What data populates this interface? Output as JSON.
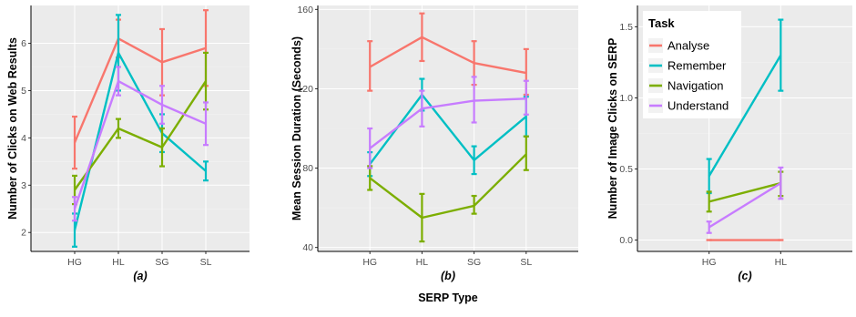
{
  "chart_data": [
    {
      "type": "line",
      "panel_label": "(a)",
      "ylabel": "Number of Clicks on Web Results",
      "xlabel": "",
      "categories": [
        "HG",
        "HL",
        "SG",
        "SL"
      ],
      "ylim": [
        1.6,
        6.8
      ],
      "yticks": [
        2,
        3,
        4,
        5,
        6
      ],
      "series": [
        {
          "name": "Analyse",
          "values": [
            3.9,
            6.1,
            5.6,
            5.9
          ],
          "lower": [
            3.35,
            5.7,
            4.9,
            5.1
          ],
          "upper": [
            4.45,
            6.5,
            6.3,
            6.7
          ]
        },
        {
          "name": "Remember",
          "values": [
            2.05,
            5.8,
            4.1,
            3.3
          ],
          "lower": [
            1.7,
            5.0,
            3.7,
            3.1
          ],
          "upper": [
            2.4,
            6.6,
            4.5,
            3.5
          ]
        },
        {
          "name": "Navigation",
          "values": [
            2.9,
            4.2,
            3.8,
            5.2
          ],
          "lower": [
            2.6,
            4.0,
            3.4,
            4.6
          ],
          "upper": [
            3.2,
            4.4,
            4.2,
            5.8
          ]
        },
        {
          "name": "Understand",
          "values": [
            2.5,
            5.2,
            4.7,
            4.3
          ],
          "lower": [
            2.25,
            4.9,
            4.3,
            3.85
          ],
          "upper": [
            2.75,
            5.5,
            5.1,
            4.75
          ]
        }
      ]
    },
    {
      "type": "line",
      "panel_label": "(b)",
      "ylabel": "Mean Session Duration (Seconds)",
      "xlabel": "SERP Type",
      "categories": [
        "HG",
        "HL",
        "SG",
        "SL"
      ],
      "ylim": [
        38,
        162
      ],
      "yticks": [
        40,
        80,
        120,
        160
      ],
      "series": [
        {
          "name": "Analyse",
          "values": [
            131,
            146,
            133,
            128
          ],
          "lower": [
            119,
            134,
            122,
            117
          ],
          "upper": [
            144,
            158,
            144,
            140
          ]
        },
        {
          "name": "Remember",
          "values": [
            82,
            117,
            84,
            106
          ],
          "lower": [
            76,
            109,
            77,
            96
          ],
          "upper": [
            88,
            125,
            91,
            116
          ]
        },
        {
          "name": "Navigation",
          "values": [
            75,
            55,
            61,
            87
          ],
          "lower": [
            69,
            43,
            57,
            79
          ],
          "upper": [
            81,
            67,
            66,
            96
          ]
        },
        {
          "name": "Understand",
          "values": [
            90,
            110,
            114,
            115
          ],
          "lower": [
            80,
            101,
            103,
            107
          ],
          "upper": [
            100,
            119,
            126,
            124
          ]
        }
      ]
    },
    {
      "type": "line",
      "panel_label": "(c)",
      "ylabel": "Number of Image Clicks on SERP",
      "xlabel": "",
      "categories": [
        "HG",
        "HL"
      ],
      "ylim": [
        -0.08,
        1.65
      ],
      "yticks": [
        0.0,
        0.5,
        1.0,
        1.5
      ],
      "ytick_labels": [
        "0.0",
        "0.5",
        "1.0",
        "1.5"
      ],
      "legend": {
        "title": "Task",
        "position": "top-left"
      },
      "series": [
        {
          "name": "Analyse",
          "values": [
            0.0,
            0.0
          ],
          "lower": [
            0.0,
            0.0
          ],
          "upper": [
            0.0,
            0.0
          ]
        },
        {
          "name": "Remember",
          "values": [
            0.45,
            1.3
          ],
          "lower": [
            0.33,
            1.05
          ],
          "upper": [
            0.57,
            1.55
          ]
        },
        {
          "name": "Navigation",
          "values": [
            0.27,
            0.4
          ],
          "lower": [
            0.2,
            0.31
          ],
          "upper": [
            0.34,
            0.48
          ]
        },
        {
          "name": "Understand",
          "values": [
            0.09,
            0.4
          ],
          "lower": [
            0.05,
            0.29
          ],
          "upper": [
            0.13,
            0.51
          ]
        }
      ]
    }
  ],
  "colors": {
    "Analyse": "#F8766D",
    "Remember": "#00BFC4",
    "Navigation": "#7CAE00",
    "Understand": "#C77CFF",
    "panel_background": "#EBEBEB"
  }
}
